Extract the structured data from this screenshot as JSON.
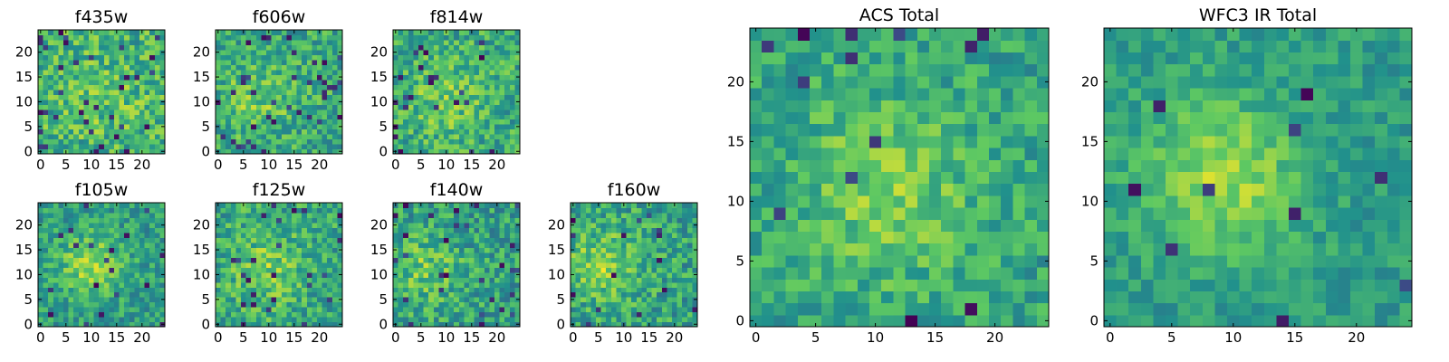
{
  "figure": {
    "background": "#ffffff"
  },
  "colormap": {
    "name": "viridis",
    "stops": [
      "#440154",
      "#3b528b",
      "#21918c",
      "#5ec962",
      "#fde725"
    ]
  },
  "chart_data": [
    {
      "type": "heatmap",
      "title": "f435w",
      "grid_size": 25,
      "xlim": [
        -0.5,
        24.5
      ],
      "ylim": [
        -0.5,
        24.5
      ],
      "xticks": [
        0,
        5,
        10,
        15,
        20
      ],
      "yticks": [
        0,
        5,
        10,
        15,
        20
      ],
      "xlabel": "",
      "ylabel": "",
      "seed": 11,
      "peak": [
        12,
        11
      ],
      "sigma": 6.0,
      "peak_amp": 0.08,
      "mean": 0.64,
      "noise": 0.22,
      "dark_freq": 0.05
    },
    {
      "type": "heatmap",
      "title": "f606w",
      "grid_size": 25,
      "xlim": [
        -0.5,
        24.5
      ],
      "ylim": [
        -0.5,
        24.5
      ],
      "xticks": [
        0,
        5,
        10,
        15,
        20
      ],
      "yticks": [
        0,
        5,
        10,
        15,
        20
      ],
      "xlabel": "",
      "ylabel": "",
      "seed": 23,
      "peak": [
        8,
        11
      ],
      "sigma": 5.0,
      "peak_amp": 0.16,
      "mean": 0.6,
      "noise": 0.2,
      "dark_freq": 0.05
    },
    {
      "type": "heatmap",
      "title": "f814w",
      "grid_size": 25,
      "xlim": [
        -0.5,
        24.5
      ],
      "ylim": [
        -0.5,
        24.5
      ],
      "xticks": [
        0,
        5,
        10,
        15,
        20
      ],
      "yticks": [
        0,
        5,
        10,
        15,
        20
      ],
      "xlabel": "",
      "ylabel": "",
      "seed": 37,
      "peak": [
        10,
        11
      ],
      "sigma": 5.5,
      "peak_amp": 0.15,
      "mean": 0.61,
      "noise": 0.2,
      "dark_freq": 0.04
    },
    {
      "type": "heatmap",
      "title": "f105w",
      "grid_size": 25,
      "xlim": [
        -0.5,
        24.5
      ],
      "ylim": [
        -0.5,
        24.5
      ],
      "xticks": [
        0,
        5,
        10,
        15,
        20
      ],
      "yticks": [
        0,
        5,
        10,
        15,
        20
      ],
      "xlabel": "",
      "ylabel": "",
      "seed": 41,
      "peak": [
        10,
        12
      ],
      "sigma": 4.5,
      "peak_amp": 0.28,
      "mean": 0.55,
      "noise": 0.17,
      "dark_freq": 0.03
    },
    {
      "type": "heatmap",
      "title": "f125w",
      "grid_size": 25,
      "xlim": [
        -0.5,
        24.5
      ],
      "ylim": [
        -0.5,
        24.5
      ],
      "xticks": [
        0,
        5,
        10,
        15,
        20
      ],
      "yticks": [
        0,
        5,
        10,
        15,
        20
      ],
      "xlabel": "",
      "ylabel": "",
      "seed": 53,
      "peak": [
        10,
        11
      ],
      "sigma": 5.0,
      "peak_amp": 0.18,
      "mean": 0.6,
      "noise": 0.2,
      "dark_freq": 0.05
    },
    {
      "type": "heatmap",
      "title": "f140w",
      "grid_size": 25,
      "xlim": [
        -0.5,
        24.5
      ],
      "ylim": [
        -0.5,
        24.5
      ],
      "xticks": [
        0,
        5,
        10,
        15,
        20
      ],
      "yticks": [
        0,
        5,
        10,
        15,
        20
      ],
      "xlabel": "",
      "ylabel": "",
      "seed": 67,
      "peak": [
        6,
        11
      ],
      "sigma": 5.0,
      "peak_amp": 0.18,
      "mean": 0.57,
      "noise": 0.2,
      "dark_freq": 0.04
    },
    {
      "type": "heatmap",
      "title": "f160w",
      "grid_size": 25,
      "xlim": [
        -0.5,
        24.5
      ],
      "ylim": [
        -0.5,
        24.5
      ],
      "xticks": [
        0,
        5,
        10,
        15,
        20
      ],
      "yticks": [
        0,
        5,
        10,
        15,
        20
      ],
      "xlabel": "",
      "ylabel": "",
      "seed": 79,
      "peak": [
        6,
        12
      ],
      "sigma": 5.0,
      "peak_amp": 0.22,
      "mean": 0.58,
      "noise": 0.2,
      "dark_freq": 0.03
    },
    {
      "type": "heatmap",
      "title": "ACS Total",
      "grid_size": 25,
      "xlim": [
        -0.5,
        24.5
      ],
      "ylim": [
        -0.5,
        24.5
      ],
      "xticks": [
        0,
        5,
        10,
        15,
        20
      ],
      "yticks": [
        0,
        5,
        10,
        15,
        20
      ],
      "xlabel": "",
      "ylabel": "",
      "seed": 97,
      "peak": [
        11,
        11
      ],
      "sigma": 5.5,
      "peak_amp": 0.2,
      "mean": 0.58,
      "noise": 0.16,
      "dark_freq": 0.03
    },
    {
      "type": "heatmap",
      "title": "WFC3 IR Total",
      "grid_size": 25,
      "xlim": [
        -0.5,
        24.5
      ],
      "ylim": [
        -0.5,
        24.5
      ],
      "xticks": [
        0,
        5,
        10,
        15,
        20
      ],
      "yticks": [
        0,
        5,
        10,
        15,
        20
      ],
      "xlabel": "",
      "ylabel": "",
      "seed": 131,
      "peak": [
        9,
        12
      ],
      "sigma": 4.5,
      "peak_amp": 0.3,
      "mean": 0.55,
      "noise": 0.12,
      "dark_freq": 0.02
    }
  ]
}
